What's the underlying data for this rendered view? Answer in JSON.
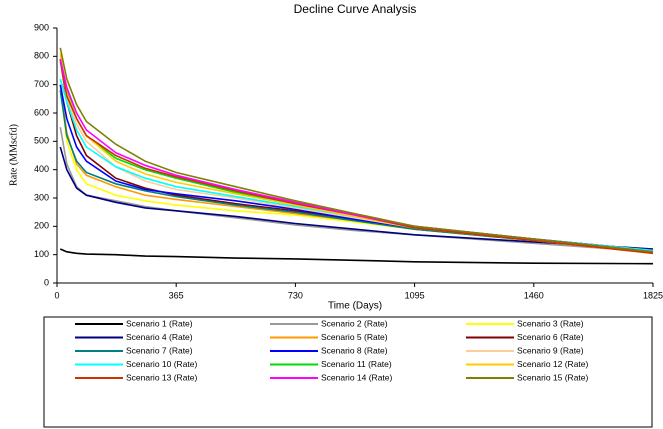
{
  "chart_data": {
    "type": "line",
    "title": "Decline Curve Analysis",
    "xlabel": "Time (Days)",
    "ylabel": "Rate (MMscfd)",
    "x": [
      10,
      30,
      60,
      90,
      180,
      270,
      365,
      547,
      730,
      912,
      1095,
      1460,
      1825
    ],
    "xlim": [
      0,
      1825
    ],
    "xticks": [
      0,
      365,
      730,
      1095,
      1460,
      1825
    ],
    "ylim": [
      0,
      900
    ],
    "yticks": [
      0,
      100,
      200,
      300,
      400,
      500,
      600,
      700,
      800,
      900
    ],
    "grid": false,
    "legend": "bottom",
    "series": [
      {
        "name": "Scenario 1 (Rate)",
        "color": "#000000",
        "values": [
          120,
          110,
          105,
          102,
          100,
          95,
          93,
          88,
          85,
          80,
          75,
          70,
          68
        ]
      },
      {
        "name": "Scenario 2 (Rate)",
        "color": "#999999",
        "values": [
          550,
          420,
          340,
          310,
          290,
          270,
          255,
          230,
          205,
          185,
          170,
          140,
          110
        ]
      },
      {
        "name": "Scenario 3 (Rate)",
        "color": "#ffff00",
        "values": [
          690,
          500,
          400,
          350,
          310,
          290,
          275,
          255,
          240,
          215,
          190,
          150,
          105
        ]
      },
      {
        "name": "Scenario 4 (Rate)",
        "color": "#000080",
        "values": [
          480,
          400,
          335,
          310,
          285,
          265,
          255,
          235,
          210,
          190,
          170,
          145,
          120
        ]
      },
      {
        "name": "Scenario 5 (Rate)",
        "color": "#ff9900",
        "values": [
          700,
          530,
          420,
          380,
          340,
          310,
          295,
          270,
          245,
          220,
          190,
          150,
          110
        ]
      },
      {
        "name": "Scenario 6 (Rate)",
        "color": "#800000",
        "values": [
          790,
          640,
          520,
          450,
          370,
          335,
          310,
          280,
          255,
          225,
          195,
          155,
          115
        ]
      },
      {
        "name": "Scenario 7 (Rate)",
        "color": "#008080",
        "values": [
          680,
          520,
          430,
          390,
          350,
          325,
          305,
          275,
          250,
          220,
          190,
          150,
          110
        ]
      },
      {
        "name": "Scenario 8 (Rate)",
        "color": "#0000ff",
        "values": [
          700,
          580,
          480,
          430,
          360,
          330,
          315,
          290,
          260,
          225,
          195,
          155,
          115
        ]
      },
      {
        "name": "Scenario 9 (Rate)",
        "color": "#ffcc99",
        "values": [
          800,
          650,
          560,
          500,
          410,
          360,
          330,
          300,
          265,
          230,
          195,
          155,
          110
        ]
      },
      {
        "name": "Scenario 10 (Rate)",
        "color": "#00ffff",
        "values": [
          720,
          640,
          540,
          480,
          410,
          370,
          340,
          305,
          270,
          235,
          200,
          155,
          115
        ]
      },
      {
        "name": "Scenario 11 (Rate)",
        "color": "#00dd00",
        "values": [
          780,
          680,
          580,
          520,
          440,
          400,
          370,
          320,
          280,
          240,
          200,
          155,
          110
        ]
      },
      {
        "name": "Scenario 12 (Rate)",
        "color": "#ffcc00",
        "values": [
          810,
          670,
          580,
          520,
          430,
          385,
          355,
          315,
          275,
          235,
          195,
          150,
          105
        ]
      },
      {
        "name": "Scenario 13 (Rate)",
        "color": "#cc3300",
        "values": [
          790,
          660,
          580,
          520,
          450,
          405,
          375,
          325,
          280,
          240,
          195,
          150,
          105
        ]
      },
      {
        "name": "Scenario 14 (Rate)",
        "color": "#ff00ff",
        "values": [
          790,
          690,
          600,
          540,
          460,
          415,
          380,
          330,
          285,
          240,
          200,
          155,
          110
        ]
      },
      {
        "name": "Scenario 15 (Rate)",
        "color": "#808000",
        "values": [
          830,
          720,
          630,
          570,
          490,
          430,
          390,
          340,
          290,
          245,
          200,
          155,
          110
        ]
      }
    ]
  }
}
